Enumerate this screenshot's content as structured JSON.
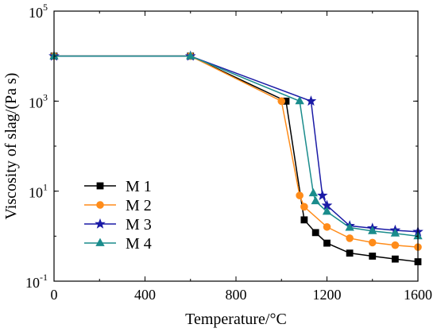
{
  "chart_data": {
    "type": "line",
    "title": "",
    "xlabel": "Temperature/°C",
    "ylabel": "Viscosity of slag/(Pa s)",
    "xlim": [
      0,
      1600
    ],
    "ylim": [
      0.1,
      100000
    ],
    "yscale": "log",
    "grid": false,
    "legend_position": "bottom-left",
    "x_ticks": [
      {
        "value": 0,
        "label": "0"
      },
      {
        "value": 400,
        "label": "400"
      },
      {
        "value": 800,
        "label": "800"
      },
      {
        "value": 1200,
        "label": "1200"
      },
      {
        "value": 1600,
        "label": "1600"
      }
    ],
    "y_ticks": [
      {
        "value": 0.1,
        "base": "10",
        "exp": "-1"
      },
      {
        "value": 10,
        "base": "10",
        "exp": "1"
      },
      {
        "value": 1000,
        "base": "10",
        "exp": "3"
      },
      {
        "value": 100000,
        "base": "10",
        "exp": "5"
      }
    ],
    "series": [
      {
        "name": "M 1",
        "color": "#000000",
        "marker": "square",
        "points": [
          [
            0,
            10000
          ],
          [
            600,
            10000
          ],
          [
            1020,
            1000
          ],
          [
            1100,
            2.3
          ],
          [
            1150,
            1.2
          ],
          [
            1200,
            0.7
          ],
          [
            1300,
            0.42
          ],
          [
            1400,
            0.36
          ],
          [
            1500,
            0.31
          ],
          [
            1600,
            0.27
          ]
        ]
      },
      {
        "name": "M 2",
        "color": "#ff8c1a",
        "marker": "circle",
        "points": [
          [
            0,
            10000
          ],
          [
            600,
            10000
          ],
          [
            1000,
            1000
          ],
          [
            1080,
            8
          ],
          [
            1100,
            4.5
          ],
          [
            1200,
            1.6
          ],
          [
            1300,
            0.9
          ],
          [
            1400,
            0.72
          ],
          [
            1500,
            0.63
          ],
          [
            1600,
            0.57
          ]
        ]
      },
      {
        "name": "M 3",
        "color": "#1a1aa6",
        "marker": "star",
        "points": [
          [
            0,
            10000
          ],
          [
            600,
            10000
          ],
          [
            1130,
            1000
          ],
          [
            1180,
            8
          ],
          [
            1200,
            4.8
          ],
          [
            1300,
            1.7
          ],
          [
            1400,
            1.5
          ],
          [
            1500,
            1.35
          ],
          [
            1600,
            1.25
          ]
        ]
      },
      {
        "name": "M 4",
        "color": "#1a8c8c",
        "marker": "triangle",
        "points": [
          [
            0,
            10000
          ],
          [
            600,
            10000
          ],
          [
            1080,
            1000
          ],
          [
            1140,
            9
          ],
          [
            1150,
            6
          ],
          [
            1200,
            3.5
          ],
          [
            1300,
            1.55
          ],
          [
            1400,
            1.3
          ],
          [
            1500,
            1.15
          ],
          [
            1600,
            1.0
          ]
        ]
      }
    ]
  }
}
